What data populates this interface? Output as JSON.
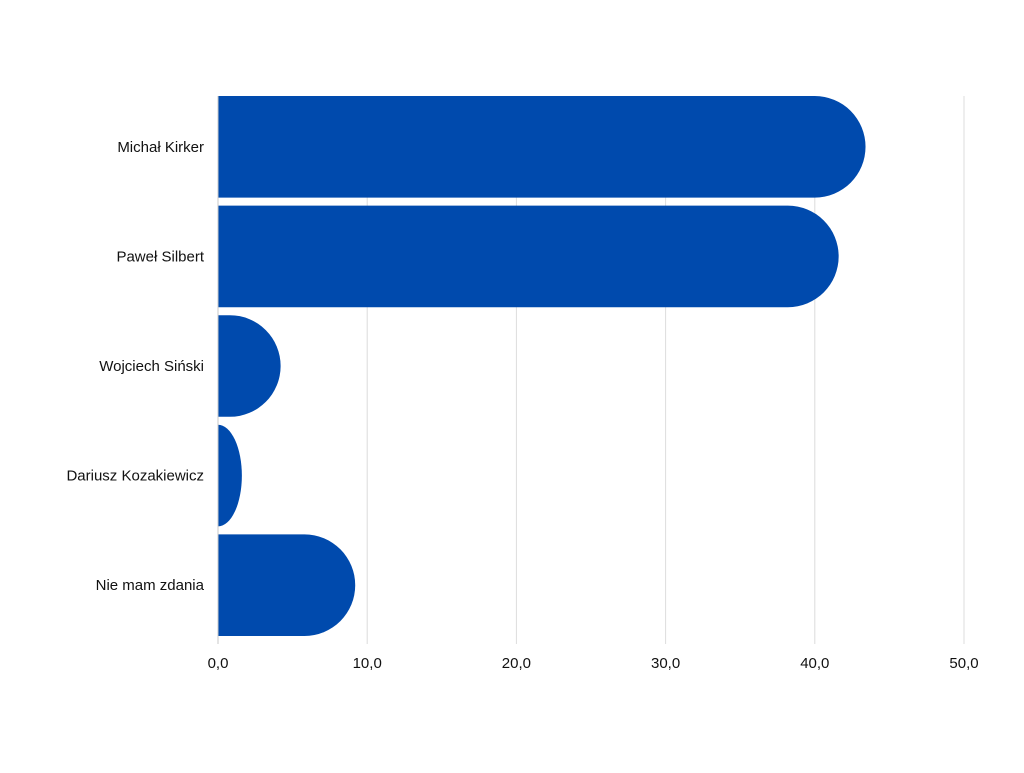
{
  "chart_data": {
    "type": "bar",
    "orientation": "horizontal",
    "categories": [
      "Michał Kirker",
      "Paweł Silbert",
      "Wojciech Siński",
      "Dariusz Kozakiewicz",
      "Nie mam zdania"
    ],
    "values": [
      43.4,
      41.6,
      4.2,
      1.6,
      9.2
    ],
    "xlim": [
      0,
      50
    ],
    "xticks": [
      "0,0",
      "10,0",
      "20,0",
      "30,0",
      "40,0",
      "50,0"
    ],
    "grid": "vertical",
    "bar_color": "#004aad",
    "grid_color": "#dcdcdc"
  }
}
